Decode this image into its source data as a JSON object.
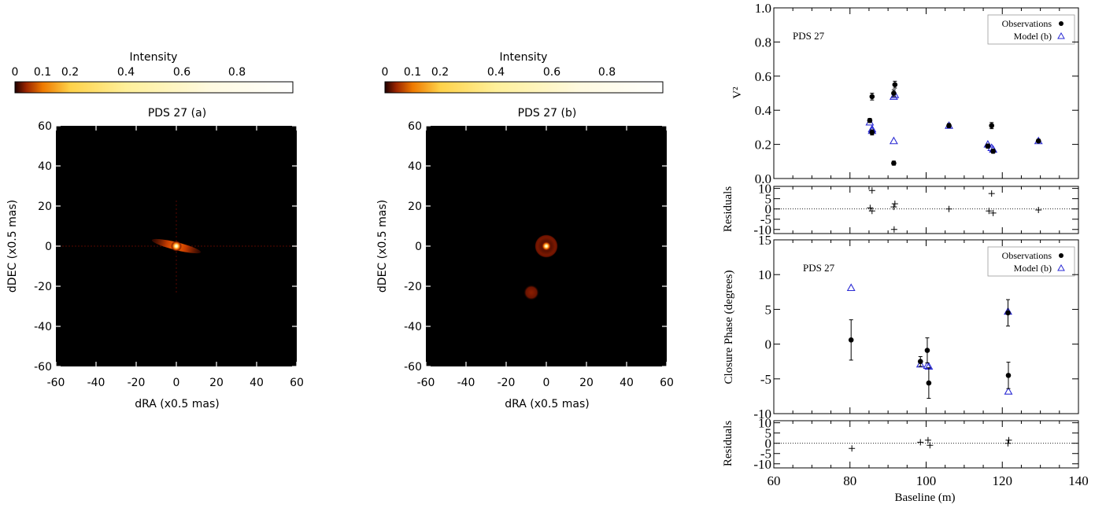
{
  "colorbar": {
    "title": "Intensity",
    "tick_labels": [
      "0",
      "0.1",
      "0.2",
      "0.4",
      "0.6",
      "0.8"
    ],
    "tick_values": [
      0,
      0.1,
      0.2,
      0.4,
      0.6,
      0.8
    ],
    "range": [
      0,
      1
    ]
  },
  "images": [
    {
      "title": "PDS 27 (a)",
      "xlabel": "dRA (x0.5 mas)",
      "ylabel": "dDEC (x0.5 mas)",
      "ticks": [
        "-60",
        "-40",
        "-20",
        "0",
        "20",
        "40",
        "60"
      ]
    },
    {
      "title": "PDS 27 (b)",
      "xlabel": "dRA (x0.5 mas)",
      "ylabel": "dDEC (x0.5 mas)",
      "ticks": [
        "-60",
        "-40",
        "-20",
        "0",
        "20",
        "40",
        "60"
      ]
    }
  ],
  "chart_data": [
    {
      "type": "scatter",
      "panel": "v2",
      "annotation": "PDS 27",
      "ylabel": "V²",
      "xlim": [
        60,
        140
      ],
      "ylim": [
        0.0,
        1.0
      ],
      "yticks": [
        "0.0",
        "0.2",
        "0.4",
        "0.6",
        "0.8",
        "1.0"
      ],
      "legend": [
        "Observations",
        "Model (b)"
      ],
      "legend_position": "top-right",
      "observations": {
        "x": [
          85.2,
          85.8,
          85.8,
          91.5,
          91.8,
          91.5,
          117.2,
          117.6,
          106.0,
          129.5,
          116.2
        ],
        "y": [
          0.34,
          0.48,
          0.27,
          0.5,
          0.55,
          0.09,
          0.31,
          0.16,
          0.31,
          0.22,
          0.19
        ],
        "err": [
          0.012,
          0.02,
          0.015,
          0.02,
          0.02,
          0.012,
          0.018,
          0.012,
          0.012,
          0.01,
          0.012
        ]
      },
      "model": {
        "x": [
          85.2,
          85.8,
          85.8,
          91.5,
          91.8,
          91.5,
          117.2,
          117.6,
          106.0,
          129.5,
          116.2
        ],
        "y": [
          0.33,
          0.29,
          0.28,
          0.48,
          0.49,
          0.22,
          0.18,
          0.17,
          0.31,
          0.22,
          0.2
        ]
      }
    },
    {
      "type": "scatter",
      "panel": "v2-residuals",
      "ylabel": "Residuals",
      "ylim": [
        -12,
        11
      ],
      "yticks": [
        "10",
        "5",
        "0",
        "-5",
        "-10"
      ],
      "x": [
        85.3,
        85.8,
        85.8,
        91.5,
        91.6,
        91.8,
        106.0,
        116.5,
        117.2,
        117.6,
        129.5
      ],
      "y": [
        0.5,
        9.0,
        -1.0,
        1.0,
        -10.0,
        2.5,
        0.0,
        -1.0,
        7.5,
        -2.0,
        -0.5
      ]
    },
    {
      "type": "scatter",
      "panel": "closure-phase",
      "annotation": "PDS 27",
      "ylabel": "Closure Phase (degrees)",
      "ylim": [
        -10,
        15
      ],
      "yticks": [
        "-10",
        "-5",
        "0",
        "5",
        "10",
        "15"
      ],
      "legend": [
        "Observations",
        "Model (b)"
      ],
      "legend_position": "top-right",
      "observations": {
        "x": [
          80.3,
          98.5,
          100.3,
          100.7,
          121.5,
          121.6
        ],
        "y": [
          0.6,
          -2.5,
          -0.9,
          -5.6,
          4.5,
          -4.5
        ],
        "err": [
          2.9,
          0.7,
          1.8,
          2.2,
          1.9,
          1.9
        ]
      },
      "model": {
        "x": [
          80.3,
          98.5,
          100.3,
          100.7,
          121.5,
          121.6
        ],
        "y": [
          8.1,
          -2.9,
          -3.1,
          -3.2,
          4.7,
          -6.8
        ]
      }
    },
    {
      "type": "scatter",
      "panel": "cp-residuals",
      "ylabel": "Residuals",
      "xlabel": "Baseline (m)",
      "ylim": [
        -12,
        11
      ],
      "yticks": [
        "10",
        "5",
        "0",
        "-5",
        "-10"
      ],
      "xticks": [
        "60",
        "80",
        "100",
        "120",
        "140"
      ],
      "x": [
        80.5,
        98.5,
        100.5,
        101.0,
        121.5,
        121.7
      ],
      "y": [
        -2.5,
        0.5,
        1.5,
        -1.0,
        0.0,
        1.5
      ]
    }
  ]
}
